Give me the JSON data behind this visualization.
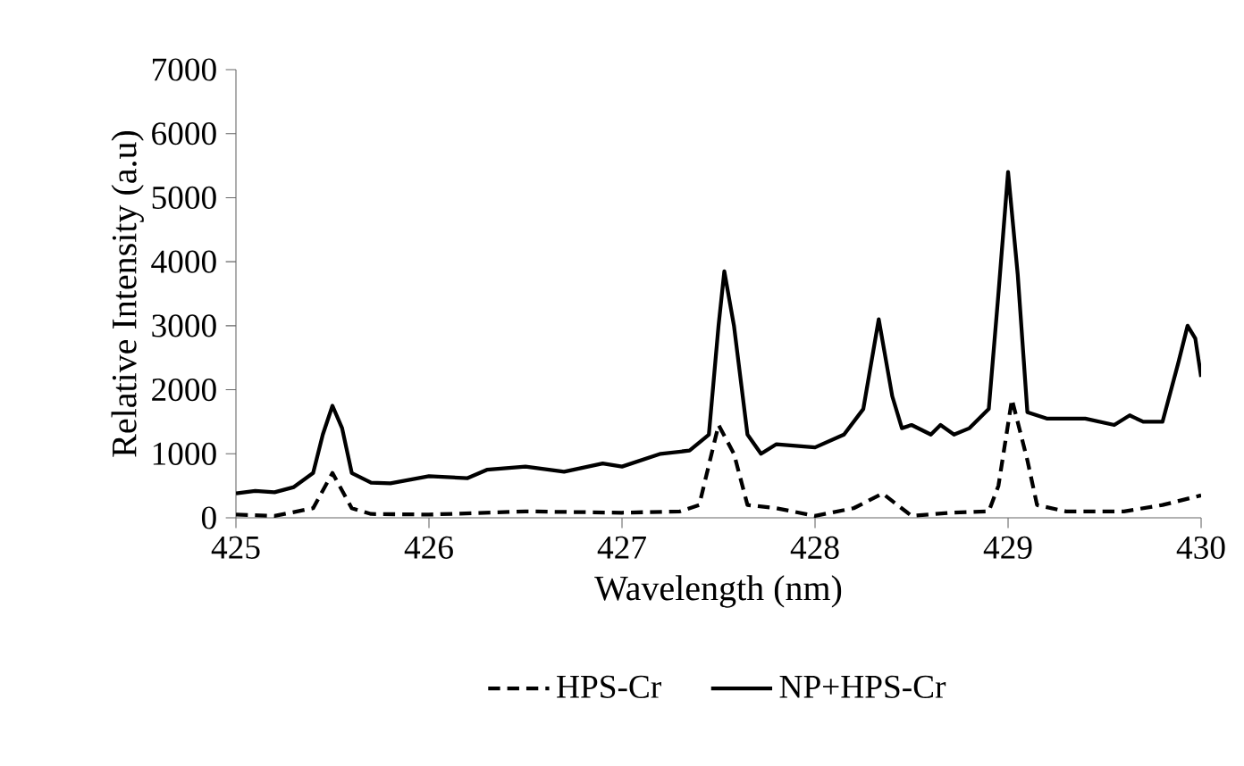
{
  "chart_data": {
    "type": "line",
    "xlabel": "Wavelength (nm)",
    "ylabel": "Relative Intensity (a.u)",
    "xlim": [
      425,
      430
    ],
    "xticks": [
      425,
      426,
      427,
      428,
      429,
      430
    ],
    "ylim": [
      0,
      7000
    ],
    "yticks": [
      0,
      1000,
      2000,
      3000,
      4000,
      5000,
      6000,
      7000
    ],
    "grid": false,
    "legend": "bottom",
    "marker": "none",
    "series": [
      {
        "name": "HPS-Cr",
        "color": "#000000",
        "line_style": "dashed",
        "x": [
          425,
          425.2,
          425.4,
          425.5,
          425.6,
          425.7,
          426,
          426.5,
          427,
          427.3,
          427.4,
          427.5,
          427.58,
          427.65,
          427.8,
          428.0,
          428.2,
          428.35,
          428.5,
          428.7,
          428.9,
          428.95,
          429.02,
          429.1,
          429.15,
          429.3,
          429.6,
          429.8,
          430
        ],
        "values": [
          50,
          30,
          150,
          700,
          150,
          60,
          50,
          100,
          80,
          100,
          200,
          1450,
          1000,
          200,
          150,
          30,
          150,
          380,
          30,
          80,
          100,
          500,
          1850,
          900,
          200,
          100,
          100,
          200,
          350
        ]
      },
      {
        "name": "NP+HPS-Cr",
        "color": "#000000",
        "line_style": "solid",
        "x": [
          425,
          425.1,
          425.2,
          425.3,
          425.4,
          425.45,
          425.5,
          425.55,
          425.6,
          425.7,
          425.8,
          426.0,
          426.2,
          426.3,
          426.5,
          426.7,
          426.9,
          427.0,
          427.2,
          427.35,
          427.45,
          427.5,
          427.53,
          427.58,
          427.65,
          427.72,
          427.8,
          428.0,
          428.15,
          428.25,
          428.33,
          428.4,
          428.45,
          428.5,
          428.6,
          428.65,
          428.72,
          428.8,
          428.9,
          428.95,
          429.0,
          429.05,
          429.1,
          429.2,
          429.4,
          429.55,
          429.63,
          429.7,
          429.8,
          429.88,
          429.93,
          429.97,
          430
        ],
        "values": [
          380,
          420,
          400,
          480,
          700,
          1300,
          1750,
          1400,
          700,
          550,
          540,
          650,
          620,
          750,
          800,
          720,
          850,
          800,
          1000,
          1050,
          1300,
          3000,
          3850,
          3000,
          1300,
          1000,
          1150,
          1100,
          1300,
          1700,
          3100,
          1900,
          1400,
          1450,
          1300,
          1450,
          1300,
          1400,
          1700,
          3500,
          5400,
          3800,
          1650,
          1550,
          1550,
          1450,
          1600,
          1500,
          1500,
          2400,
          3000,
          2800,
          2200
        ]
      }
    ]
  }
}
